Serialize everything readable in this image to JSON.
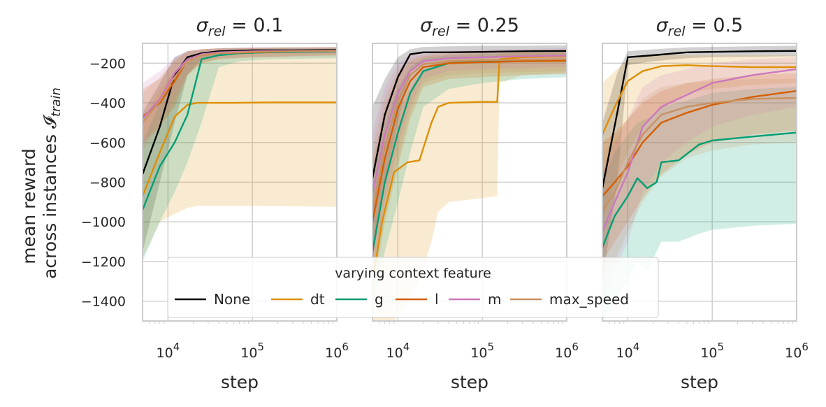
{
  "figure": {
    "ylabel_line1": "mean reward",
    "ylabel_line2": "across instances 𝓘",
    "ylabel_sub": "train"
  },
  "legend": {
    "title": "varying context feature",
    "placement": "lower-center",
    "entries": [
      {
        "name": "None",
        "color": "#000000"
      },
      {
        "name": "dt",
        "color": "#de8f05"
      },
      {
        "name": "g",
        "color": "#029e73"
      },
      {
        "name": "l",
        "color": "#d55e00"
      },
      {
        "name": "m",
        "color": "#cc78bc"
      },
      {
        "name": "max_speed",
        "color": "#ca9161"
      }
    ]
  },
  "chart_data": [
    {
      "type": "line",
      "title": "σ",
      "title_sub": "rel",
      "title_rest": " = 0.1",
      "xlabel": "step",
      "ylabel": "mean reward across instances I_train",
      "xscale": "log",
      "xlim": [
        5000,
        1000000
      ],
      "ylim": [
        -1500,
        -100
      ],
      "xticks": [
        {
          "v": 10000,
          "base": "10",
          "exp": "4"
        },
        {
          "v": 100000,
          "base": "10",
          "exp": "5"
        },
        {
          "v": 1000000,
          "base": "10",
          "exp": "6"
        }
      ],
      "yticks": [
        "-200",
        "-400",
        "-600",
        "-800",
        "-1000",
        "-1200",
        "-1400"
      ],
      "grid": true,
      "series": [
        {
          "name": "None",
          "x": [
            5000,
            8000,
            12000,
            17000,
            25000,
            40000,
            100000,
            300000,
            1000000
          ],
          "y": [
            -760,
            -520,
            -260,
            -170,
            -150,
            -140,
            -135,
            -135,
            -133
          ],
          "lower": [
            -1150,
            -800,
            -500,
            -260,
            -180,
            -160,
            -150,
            -150,
            -150
          ],
          "upper": [
            -450,
            -300,
            -170,
            -140,
            -130,
            -125,
            -122,
            -120,
            -120
          ]
        },
        {
          "name": "dt",
          "x": [
            5000,
            8000,
            12000,
            17000,
            22000,
            30000,
            60000,
            150000,
            1000000
          ],
          "y": [
            -870,
            -650,
            -470,
            -410,
            -400,
            -400,
            -400,
            -398,
            -398
          ],
          "lower": [
            -1180,
            -1000,
            -960,
            -930,
            -920,
            -920,
            -920,
            -920,
            -925
          ],
          "upper": [
            -500,
            -330,
            -240,
            -180,
            -150,
            -145,
            -140,
            -140,
            -138
          ]
        },
        {
          "name": "g",
          "x": [
            5000,
            8000,
            12000,
            17000,
            25000,
            40000,
            70000,
            150000,
            1000000
          ],
          "y": [
            -940,
            -720,
            -600,
            -460,
            -180,
            -160,
            -150,
            -145,
            -140
          ],
          "lower": [
            -1200,
            -1000,
            -850,
            -700,
            -500,
            -220,
            -190,
            -180,
            -175
          ],
          "upper": [
            -600,
            -400,
            -280,
            -200,
            -145,
            -135,
            -130,
            -128,
            -125
          ]
        },
        {
          "name": "l",
          "x": [
            5000,
            8000,
            12000,
            17000,
            25000,
            40000,
            100000,
            300000,
            1000000
          ],
          "y": [
            -470,
            -400,
            -290,
            -185,
            -160,
            -150,
            -145,
            -140,
            -137
          ],
          "lower": [
            -600,
            -520,
            -420,
            -260,
            -200,
            -180,
            -170,
            -165,
            -160
          ],
          "upper": [
            -330,
            -280,
            -190,
            -140,
            -130,
            -125,
            -122,
            -120,
            -120
          ]
        },
        {
          "name": "m",
          "x": [
            5000,
            8000,
            12000,
            17000,
            25000,
            40000,
            100000,
            300000,
            1000000
          ],
          "y": [
            -480,
            -380,
            -250,
            -180,
            -155,
            -145,
            -140,
            -138,
            -137
          ],
          "lower": [
            -620,
            -500,
            -380,
            -250,
            -190,
            -175,
            -170,
            -165,
            -160
          ],
          "upper": [
            -300,
            -240,
            -170,
            -140,
            -130,
            -125,
            -120,
            -120,
            -118
          ]
        },
        {
          "name": "max_speed",
          "x": [
            5000,
            8000,
            12000,
            17000,
            25000,
            40000,
            100000,
            300000,
            1000000
          ],
          "y": [
            -500,
            -390,
            -270,
            -190,
            -160,
            -150,
            -143,
            -140,
            -138
          ],
          "lower": [
            -640,
            -520,
            -400,
            -260,
            -200,
            -180,
            -172,
            -168,
            -165
          ],
          "upper": [
            -350,
            -270,
            -180,
            -145,
            -130,
            -125,
            -121,
            -120,
            -118
          ]
        }
      ]
    },
    {
      "type": "line",
      "title": "σ",
      "title_sub": "rel",
      "title_rest": " = 0.25",
      "xlabel": "step",
      "xscale": "log",
      "xlim": [
        5000,
        1000000
      ],
      "ylim": [
        -1500,
        -100
      ],
      "xticks": [
        {
          "v": 10000,
          "base": "10",
          "exp": "4"
        },
        {
          "v": 100000,
          "base": "10",
          "exp": "5"
        },
        {
          "v": 1000000,
          "base": "10",
          "exp": "6"
        }
      ],
      "grid": true,
      "series": [
        {
          "name": "None",
          "x": [
            5000,
            7000,
            10000,
            14000,
            20000,
            40000,
            100000,
            300000,
            1000000
          ],
          "y": [
            -780,
            -460,
            -270,
            -155,
            -145,
            -145,
            -143,
            -140,
            -138
          ],
          "lower": [
            -1200,
            -800,
            -500,
            -240,
            -190,
            -180,
            -175,
            -170,
            -165
          ],
          "upper": [
            -420,
            -280,
            -170,
            -130,
            -118,
            -115,
            -112,
            -112,
            -110
          ]
        },
        {
          "name": "dt",
          "x": [
            5000,
            6500,
            9000,
            13000,
            18000,
            25000,
            30000,
            40000,
            100000,
            150000,
            160000,
            300000,
            1000000
          ],
          "y": [
            -1300,
            -1000,
            -750,
            -700,
            -690,
            -500,
            -420,
            -400,
            -395,
            -395,
            -180,
            -170,
            -165
          ],
          "lower": [
            -1500,
            -1500,
            -1500,
            -1400,
            -1300,
            -1100,
            -950,
            -900,
            -880,
            -870,
            -300,
            -260,
            -250
          ],
          "upper": [
            -900,
            -700,
            -500,
            -350,
            -260,
            -200,
            -180,
            -175,
            -170,
            -168,
            -150,
            -145,
            -140
          ]
        },
        {
          "name": "g",
          "x": [
            5000,
            7000,
            10000,
            14000,
            20000,
            40000,
            100000,
            300000,
            1000000
          ],
          "y": [
            -1150,
            -800,
            -550,
            -350,
            -240,
            -200,
            -190,
            -185,
            -180
          ],
          "lower": [
            -1450,
            -1150,
            -900,
            -650,
            -420,
            -330,
            -300,
            -280,
            -270
          ],
          "upper": [
            -800,
            -500,
            -320,
            -220,
            -175,
            -160,
            -155,
            -150,
            -145
          ]
        },
        {
          "name": "l",
          "x": [
            5000,
            7000,
            10000,
            14000,
            20000,
            40000,
            100000,
            300000,
            1000000
          ],
          "y": [
            -1000,
            -680,
            -430,
            -290,
            -220,
            -200,
            -195,
            -190,
            -188
          ],
          "lower": [
            -1350,
            -1000,
            -720,
            -480,
            -320,
            -280,
            -270,
            -260,
            -255
          ],
          "upper": [
            -700,
            -420,
            -260,
            -190,
            -165,
            -155,
            -150,
            -148,
            -145
          ]
        },
        {
          "name": "m",
          "x": [
            5000,
            7000,
            10000,
            14000,
            20000,
            40000,
            100000,
            300000,
            1000000
          ],
          "y": [
            -860,
            -560,
            -350,
            -240,
            -190,
            -175,
            -170,
            -165,
            -162
          ],
          "lower": [
            -1250,
            -900,
            -620,
            -420,
            -280,
            -240,
            -230,
            -225,
            -220
          ],
          "upper": [
            -550,
            -320,
            -200,
            -160,
            -140,
            -135,
            -130,
            -128,
            -125
          ]
        },
        {
          "name": "max_speed",
          "x": [
            5000,
            7000,
            10000,
            14000,
            20000,
            40000,
            100000,
            300000,
            1000000
          ],
          "y": [
            -950,
            -620,
            -390,
            -260,
            -205,
            -190,
            -185,
            -182,
            -180
          ],
          "lower": [
            -1300,
            -950,
            -680,
            -450,
            -300,
            -260,
            -250,
            -245,
            -240
          ],
          "upper": [
            -620,
            -370,
            -230,
            -175,
            -155,
            -145,
            -140,
            -138,
            -135
          ]
        }
      ]
    },
    {
      "type": "line",
      "title": "σ",
      "title_sub": "rel",
      "title_rest": " = 0.5",
      "xlabel": "step",
      "xscale": "log",
      "xlim": [
        5000,
        1000000
      ],
      "ylim": [
        -1500,
        -100
      ],
      "xticks": [
        {
          "v": 10000,
          "base": "10",
          "exp": "4"
        },
        {
          "v": 100000,
          "base": "10",
          "exp": "5"
        },
        {
          "v": 1000000,
          "base": "10",
          "exp": "6"
        }
      ],
      "grid": true,
      "series": [
        {
          "name": "None",
          "x": [
            5000,
            7500,
            10000,
            20000,
            50000,
            100000,
            300000,
            1000000
          ],
          "y": [
            -830,
            -450,
            -170,
            -160,
            -145,
            -143,
            -140,
            -138
          ],
          "lower": [
            -1300,
            -800,
            -210,
            -190,
            -175,
            -170,
            -168,
            -165
          ],
          "upper": [
            -500,
            -250,
            -140,
            -130,
            -120,
            -118,
            -115,
            -112
          ]
        },
        {
          "name": "dt",
          "x": [
            5000,
            7000,
            10000,
            15000,
            25000,
            50000,
            100000,
            300000,
            1000000
          ],
          "y": [
            -560,
            -420,
            -290,
            -240,
            -215,
            -210,
            -215,
            -220,
            -220
          ],
          "lower": [
            -1000,
            -800,
            -650,
            -520,
            -430,
            -350,
            -330,
            -310,
            -300
          ],
          "upper": [
            -300,
            -240,
            -180,
            -165,
            -160,
            -158,
            -160,
            -160,
            -160
          ]
        },
        {
          "name": "g",
          "x": [
            5000,
            7000,
            10000,
            13000,
            17000,
            22000,
            25000,
            40000,
            70000,
            100000,
            300000,
            1000000
          ],
          "y": [
            -1130,
            -970,
            -870,
            -780,
            -830,
            -800,
            -700,
            -690,
            -610,
            -590,
            -570,
            -550
          ],
          "lower": [
            -1500,
            -1400,
            -1300,
            -1200,
            -1250,
            -1150,
            -1100,
            -1100,
            -1060,
            -1040,
            -1020,
            -1010
          ],
          "upper": [
            -800,
            -650,
            -560,
            -500,
            -480,
            -450,
            -420,
            -400,
            -370,
            -350,
            -330,
            -320
          ]
        },
        {
          "name": "l",
          "x": [
            5000,
            7000,
            10000,
            15000,
            25000,
            50000,
            100000,
            300000,
            1000000
          ],
          "y": [
            -870,
            -800,
            -720,
            -600,
            -500,
            -450,
            -410,
            -370,
            -340
          ],
          "lower": [
            -1200,
            -1100,
            -1000,
            -880,
            -760,
            -660,
            -600,
            -560,
            -540
          ],
          "upper": [
            -600,
            -550,
            -480,
            -400,
            -340,
            -300,
            -280,
            -260,
            -250
          ]
        },
        {
          "name": "m",
          "x": [
            5000,
            7000,
            10000,
            15000,
            25000,
            50000,
            100000,
            300000,
            1000000
          ],
          "y": [
            -1050,
            -900,
            -750,
            -520,
            -420,
            -360,
            -300,
            -260,
            -230
          ],
          "lower": [
            -1400,
            -1250,
            -1100,
            -850,
            -700,
            -600,
            -520,
            -460,
            -420
          ],
          "upper": [
            -750,
            -600,
            -480,
            -320,
            -260,
            -230,
            -200,
            -180,
            -170
          ]
        },
        {
          "name": "max_speed",
          "x": [
            5000,
            7000,
            10000,
            15000,
            25000,
            50000,
            100000,
            300000,
            1000000
          ],
          "y": [
            -950,
            -850,
            -700,
            -560,
            -460,
            -420,
            -400,
            -380,
            -375
          ],
          "lower": [
            -1300,
            -1200,
            -1050,
            -900,
            -770,
            -680,
            -640,
            -610,
            -600
          ],
          "upper": [
            -650,
            -580,
            -480,
            -380,
            -320,
            -300,
            -290,
            -280,
            -278
          ]
        }
      ]
    }
  ]
}
